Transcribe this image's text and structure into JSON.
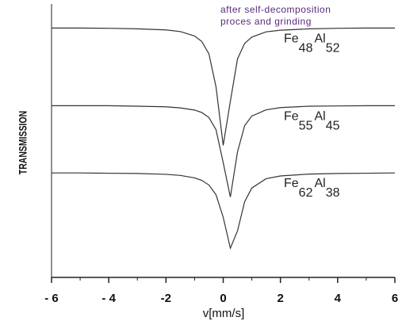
{
  "chart_data": {
    "type": "line",
    "x_label": "v[mm/s]",
    "y_label": "TRANSMISSION",
    "annotations": [
      "after self-decomposition",
      "proces and grinding"
    ],
    "x": [
      -6,
      -5,
      -4,
      -3,
      -2,
      -1.5,
      -1,
      -0.75,
      -0.5,
      -0.25,
      0,
      0.25,
      0.5,
      0.75,
      1,
      1.5,
      2,
      3,
      4,
      5,
      6
    ],
    "series": [
      {
        "name": "Fe48Al52",
        "color": "#333333",
        "values": [
          91.2,
          91.2,
          91.1,
          90.9,
          90.5,
          89.9,
          88.3,
          86.3,
          81.8,
          69.6,
          48.3,
          64.4,
          79.9,
          85.6,
          87.9,
          89.8,
          90.4,
          90.9,
          91.1,
          91.2,
          91.2
        ]
      },
      {
        "name": "Fe55Al45",
        "color": "#333333",
        "values": [
          62.8,
          62.8,
          62.8,
          62.6,
          62.4,
          62.0,
          61.2,
          60.3,
          58.5,
          54.0,
          42.0,
          29.4,
          45.9,
          55.5,
          59.0,
          61.3,
          62.1,
          62.6,
          62.7,
          62.8,
          62.8
        ]
      },
      {
        "name": "Fe62Al38",
        "color": "#333333",
        "values": [
          38.2,
          38.2,
          38.1,
          38.0,
          37.7,
          37.3,
          36.4,
          35.5,
          33.8,
          30.2,
          22.0,
          10.7,
          17.0,
          27.7,
          32.7,
          36.1,
          37.1,
          37.8,
          38.0,
          38.1,
          38.2
        ]
      }
    ],
    "xlim": [
      -6,
      6
    ],
    "xticks": [
      {
        "value": -6,
        "label": "- 6"
      },
      {
        "value": -4,
        "label": "- 4"
      },
      -2,
      0,
      2,
      4,
      6
    ],
    "ylim": [
      0,
      100
    ],
    "grid": false
  }
}
